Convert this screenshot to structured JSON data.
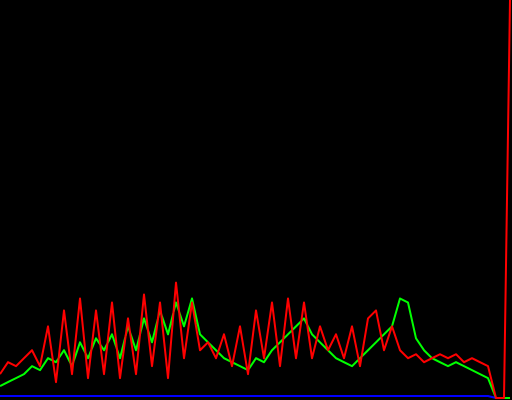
{
  "chart_data": {
    "type": "line",
    "background": "#000000",
    "xlim": [
      0,
      255
    ],
    "ylim": [
      0,
      100
    ],
    "x": [
      0,
      4,
      8,
      12,
      16,
      20,
      24,
      28,
      32,
      36,
      40,
      44,
      48,
      52,
      56,
      60,
      64,
      68,
      72,
      76,
      80,
      84,
      88,
      92,
      96,
      100,
      104,
      108,
      112,
      116,
      120,
      124,
      128,
      132,
      136,
      140,
      144,
      148,
      152,
      156,
      160,
      164,
      168,
      172,
      176,
      180,
      184,
      188,
      192,
      196,
      200,
      204,
      208,
      212,
      216,
      220,
      224,
      228,
      232,
      236,
      240,
      244,
      248,
      252,
      255
    ],
    "series": [
      {
        "color": "#0000ff",
        "values": [
          0.5,
          0.5,
          0.5,
          0.5,
          0.5,
          0.5,
          0.5,
          0.5,
          0.5,
          0.5,
          0.5,
          0.5,
          0.5,
          0.5,
          0.5,
          0.5,
          0.5,
          0.5,
          0.5,
          0.5,
          0.5,
          0.5,
          0.5,
          0.5,
          0.5,
          0.5,
          0.5,
          0.5,
          0.5,
          0.5,
          0.5,
          0.5,
          0.5,
          0.5,
          0.5,
          0.5,
          0.5,
          0.5,
          0.5,
          0.5,
          0.5,
          0.5,
          0.5,
          0.5,
          0.5,
          0.5,
          0.5,
          0.5,
          0.5,
          0.5,
          0.5,
          0.5,
          0.5,
          0.5,
          0.5,
          0.5,
          0.5,
          0.5,
          0.5,
          0.5,
          0.5,
          0.5,
          0,
          0,
          0
        ]
      },
      {
        "color": "#00ff00",
        "values": [
          3,
          4,
          5,
          6,
          8,
          7,
          10,
          9,
          12,
          8,
          14,
          10,
          15,
          12,
          16,
          10,
          18,
          12,
          20,
          14,
          22,
          16,
          24,
          18,
          25,
          16,
          14,
          12,
          10,
          9,
          8,
          7,
          10,
          9,
          12,
          14,
          16,
          18,
          20,
          16,
          14,
          12,
          10,
          9,
          8,
          10,
          12,
          14,
          16,
          18,
          25,
          24,
          15,
          12,
          10,
          9,
          8,
          9,
          8,
          7,
          6,
          5,
          0,
          0,
          0
        ]
      },
      {
        "color": "#ff0000",
        "values": [
          6,
          9,
          8,
          10,
          12,
          8,
          18,
          4,
          22,
          6,
          25,
          5,
          22,
          6,
          24,
          5,
          20,
          6,
          26,
          8,
          24,
          5,
          29,
          10,
          24,
          12,
          14,
          10,
          16,
          8,
          18,
          6,
          22,
          10,
          24,
          8,
          25,
          10,
          24,
          10,
          18,
          12,
          16,
          10,
          18,
          8,
          20,
          22,
          12,
          18,
          12,
          10,
          11,
          9,
          10,
          11,
          10,
          11,
          9,
          10,
          9,
          8,
          0,
          0,
          100
        ]
      }
    ]
  }
}
